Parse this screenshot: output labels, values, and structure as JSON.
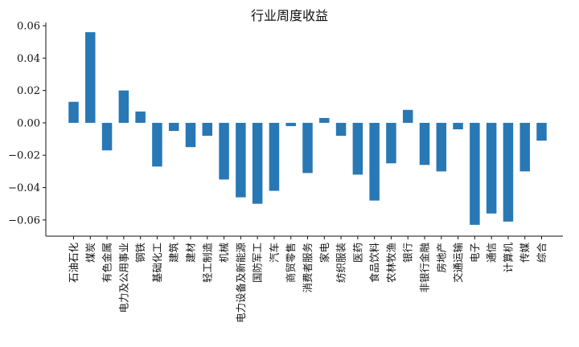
{
  "chart_data": {
    "type": "bar",
    "title": "行业周度收益",
    "xlabel": "",
    "ylabel": "",
    "ylim": [
      -0.07,
      0.062
    ],
    "yticks": [
      0.06,
      0.04,
      0.02,
      0.0,
      -0.02,
      -0.04,
      -0.06
    ],
    "ytick_labels": [
      "0.06",
      "0.04",
      "0.02",
      "0.00",
      "−0.02",
      "−0.04",
      "−0.06"
    ],
    "bar_color": "#2878b5",
    "grid": false,
    "categories": [
      "石油石化",
      "煤炭",
      "有色金属",
      "电力及公用事业",
      "钢铁",
      "基础化工",
      "建筑",
      "建材",
      "轻工制造",
      "机械",
      "电力设备及新能源",
      "国防军工",
      "汽车",
      "商贸零售",
      "消费者服务",
      "家电",
      "纺织服装",
      "医药",
      "食品饮料",
      "农林牧渔",
      "银行",
      "非银行金融",
      "房地产",
      "交通运输",
      "电子",
      "通信",
      "计算机",
      "传媒",
      "综合"
    ],
    "values": [
      0.013,
      0.056,
      -0.017,
      0.02,
      0.007,
      -0.027,
      -0.005,
      -0.015,
      -0.008,
      -0.035,
      -0.046,
      -0.05,
      -0.042,
      -0.002,
      -0.031,
      0.003,
      -0.008,
      -0.032,
      -0.048,
      -0.025,
      0.008,
      -0.026,
      -0.03,
      -0.004,
      -0.063,
      -0.056,
      -0.061,
      -0.03,
      -0.011
    ]
  }
}
